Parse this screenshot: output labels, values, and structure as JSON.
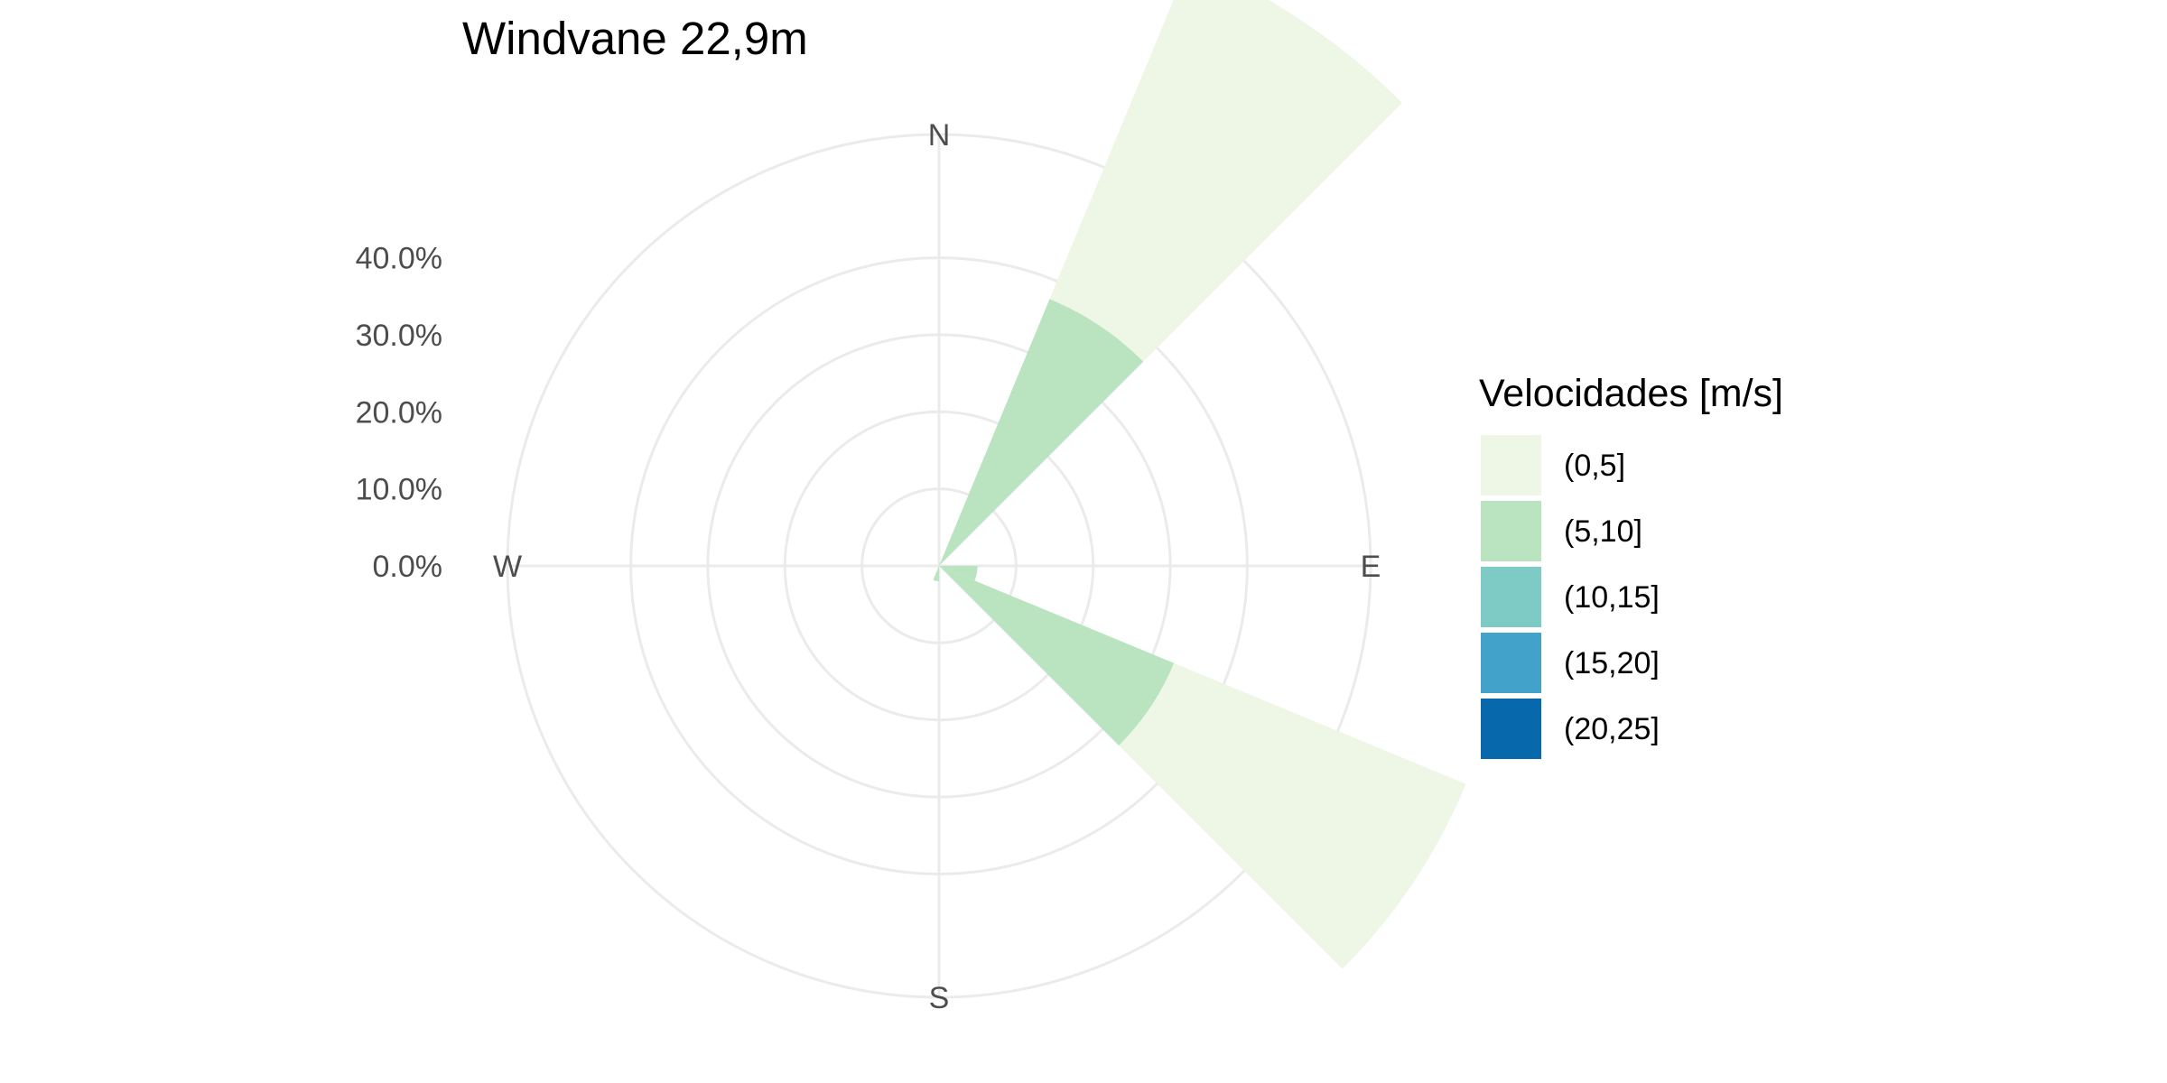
{
  "chart_data": {
    "type": "windrose",
    "title": "Windvane 22,9m",
    "radial_axis": {
      "ticks": [
        "0.0%",
        "10.0%",
        "20.0%",
        "30.0%",
        "40.0%"
      ],
      "tick_values": [
        0,
        10,
        20,
        30,
        40
      ],
      "max": 56
    },
    "directions": [
      "N",
      "E",
      "S",
      "W"
    ],
    "legend": {
      "title": "Velocidades [m/s]",
      "placement": "right",
      "bins": [
        {
          "label": "(0,5]",
          "color": "#eef7e5"
        },
        {
          "label": "(5,10]",
          "color": "#bae4bf"
        },
        {
          "label": "(10,15]",
          "color": "#7dcbc4"
        },
        {
          "label": "(15,20]",
          "color": "#43a2ca"
        },
        {
          "label": "(20,25]",
          "color": "#0868ac"
        }
      ]
    },
    "sectors": [
      {
        "start_deg": 22.5,
        "end_deg": 45,
        "stack": [
          {
            "bin": "(5,10]",
            "value": 37.5
          },
          {
            "bin": "(0,5]",
            "value": 47.5
          }
        ]
      },
      {
        "start_deg": 90,
        "end_deg": 112.5,
        "stack": [
          {
            "bin": "(5,10]",
            "value": 5
          }
        ]
      },
      {
        "start_deg": 112.5,
        "end_deg": 135,
        "stack": [
          {
            "bin": "(5,10]",
            "value": 33
          },
          {
            "bin": "(0,5]",
            "value": 41
          }
        ]
      },
      {
        "start_deg": 180,
        "end_deg": 202.5,
        "stack": [
          {
            "bin": "(5,10]",
            "value": 2
          }
        ]
      }
    ],
    "grid": true
  }
}
